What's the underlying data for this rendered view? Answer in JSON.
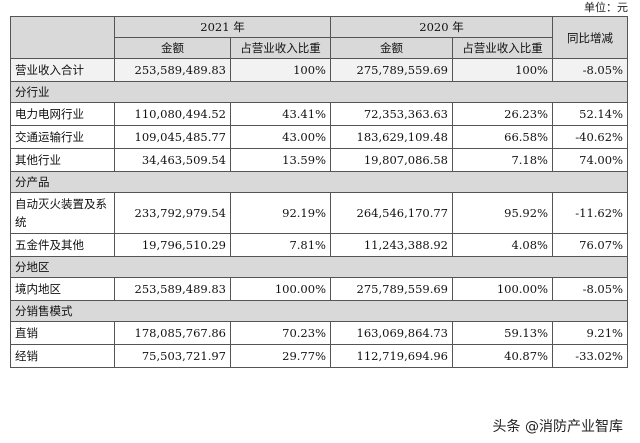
{
  "unit_label": "单位：元",
  "header": {
    "year_2021": "2021 年",
    "year_2020": "2020 年",
    "yoy": "同比增减",
    "amount": "金额",
    "ratio": "占营业收入比重"
  },
  "total": {
    "label": "营业收入合计",
    "a21": "253,589,489.83",
    "r21": "100%",
    "a20": "275,789,559.69",
    "r20": "100%",
    "yoy": "-8.05%"
  },
  "sections": [
    {
      "title": "分行业",
      "rows": [
        {
          "label": "电力电网行业",
          "a21": "110,080,494.52",
          "r21": "43.41%",
          "a20": "72,353,363.63",
          "r20": "26.23%",
          "yoy": "52.14%"
        },
        {
          "label": "交通运输行业",
          "a21": "109,045,485.77",
          "r21": "43.00%",
          "a20": "183,629,109.48",
          "r20": "66.58%",
          "yoy": "-40.62%"
        },
        {
          "label": "其他行业",
          "a21": "34,463,509.54",
          "r21": "13.59%",
          "a20": "19,807,086.58",
          "r20": "7.18%",
          "yoy": "74.00%"
        }
      ]
    },
    {
      "title": "分产品",
      "rows": [
        {
          "label": "自动灭火装置及系统",
          "a21": "233,792,979.54",
          "r21": "92.19%",
          "a20": "264,546,170.77",
          "r20": "95.92%",
          "yoy": "-11.62%"
        },
        {
          "label": "五金件及其他",
          "a21": "19,796,510.29",
          "r21": "7.81%",
          "a20": "11,243,388.92",
          "r20": "4.08%",
          "yoy": "76.07%"
        }
      ]
    },
    {
      "title": "分地区",
      "rows": [
        {
          "label": "境内地区",
          "a21": "253,589,489.83",
          "r21": "100.00%",
          "a20": "275,789,559.69",
          "r20": "100.00%",
          "yoy": "-8.05%"
        }
      ]
    },
    {
      "title": "分销售模式",
      "rows": [
        {
          "label": "直销",
          "a21": "178,085,767.86",
          "r21": "70.23%",
          "a20": "163,069,864.73",
          "r20": "59.13%",
          "yoy": "9.21%"
        },
        {
          "label": "经销",
          "a21": "75,503,721.97",
          "r21": "29.77%",
          "a20": "112,719,694.96",
          "r20": "40.87%",
          "yoy": "-33.02%"
        }
      ]
    }
  ],
  "watermark": "头条 @消防产业智库"
}
